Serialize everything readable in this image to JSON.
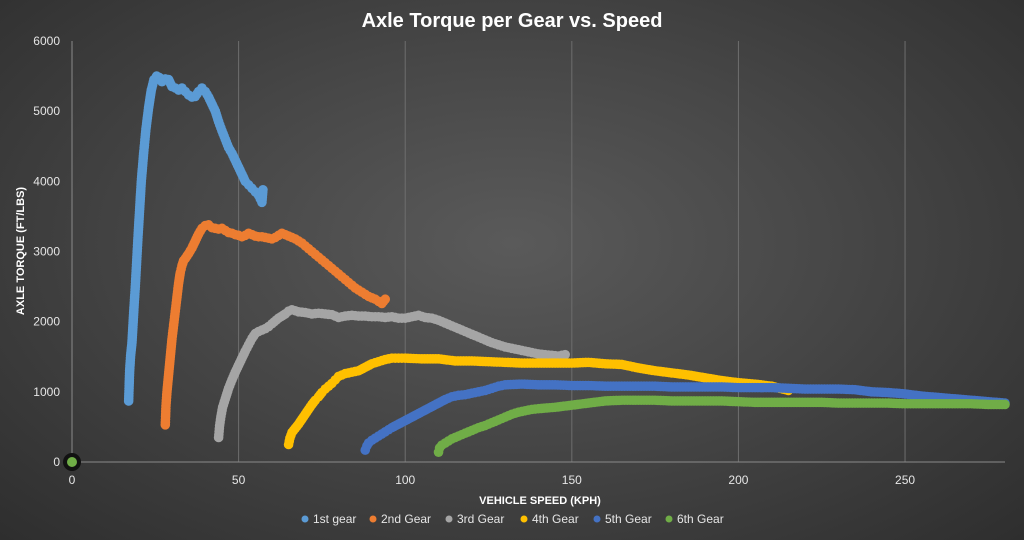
{
  "chart_data": {
    "type": "scatter",
    "title": "Axle Torque per Gear vs. Speed",
    "xlabel": "VEHICLE SPEED (KPH)",
    "ylabel": "AXLE TORQUE (FT/LBS)",
    "xlim": [
      0,
      280
    ],
    "ylim": [
      0,
      6000
    ],
    "x_ticks": [
      0,
      50,
      100,
      150,
      200,
      250
    ],
    "y_ticks": [
      0,
      1000,
      2000,
      3000,
      4000,
      5000,
      6000
    ],
    "grid": "vertical",
    "legend_position": "bottom",
    "series": [
      {
        "name": "1st gear",
        "color": "#5b9bd5",
        "x": [
          17,
          17.3,
          17.6,
          18,
          18.3,
          18.6,
          19,
          19.4,
          19.8,
          20.3,
          20.8,
          21.5,
          22.2,
          23,
          23.8,
          24.6,
          25.4,
          26.2,
          27,
          28,
          29,
          30,
          31,
          32,
          33,
          34,
          35,
          36,
          37,
          38,
          39,
          40,
          41,
          42,
          43,
          44,
          45,
          46,
          47,
          48,
          49,
          50,
          51,
          52,
          53,
          54,
          55,
          56,
          56.5,
          57,
          57.3
        ],
        "y": [
          870,
          1300,
          1520,
          1700,
          1950,
          2200,
          2500,
          2850,
          3200,
          3600,
          4000,
          4400,
          4750,
          5050,
          5300,
          5450,
          5500,
          5480,
          5420,
          5460,
          5450,
          5350,
          5330,
          5300,
          5330,
          5280,
          5230,
          5200,
          5210,
          5280,
          5330,
          5280,
          5200,
          5100,
          5000,
          4850,
          4720,
          4600,
          4480,
          4400,
          4300,
          4200,
          4100,
          4000,
          3950,
          3900,
          3850,
          3800,
          3750,
          3700,
          3880
        ]
      },
      {
        "name": "2nd Gear",
        "color": "#ed7d31",
        "x": [
          28,
          28.2,
          28.5,
          29,
          29.5,
          30,
          30.5,
          31,
          31.5,
          32,
          32.5,
          33,
          33.5,
          34,
          35,
          36,
          37,
          38,
          39,
          40,
          41,
          42,
          43,
          44,
          45,
          46,
          47,
          48,
          49,
          50,
          51,
          52,
          53,
          54,
          55,
          56,
          57,
          58,
          59,
          60,
          61,
          62,
          63,
          64,
          65,
          66,
          67,
          68,
          69,
          70,
          71,
          72,
          73,
          74,
          75,
          76,
          77,
          78,
          79,
          80,
          81,
          82,
          83,
          84,
          85,
          86,
          87,
          88,
          89,
          90,
          91,
          92,
          93,
          94
        ],
        "y": [
          530,
          800,
          1000,
          1250,
          1500,
          1750,
          1950,
          2150,
          2350,
          2550,
          2700,
          2800,
          2870,
          2900,
          2970,
          3050,
          3150,
          3250,
          3330,
          3370,
          3380,
          3340,
          3330,
          3320,
          3330,
          3300,
          3270,
          3260,
          3240,
          3230,
          3210,
          3230,
          3260,
          3240,
          3220,
          3210,
          3210,
          3200,
          3190,
          3180,
          3200,
          3230,
          3260,
          3240,
          3220,
          3200,
          3180,
          3150,
          3120,
          3080,
          3040,
          3000,
          2960,
          2920,
          2880,
          2840,
          2800,
          2760,
          2720,
          2680,
          2640,
          2600,
          2560,
          2520,
          2480,
          2450,
          2420,
          2390,
          2360,
          2340,
          2320,
          2290,
          2260,
          2320
        ]
      },
      {
        "name": "3rd Gear",
        "color": "#a5a5a5",
        "x": [
          44,
          44.3,
          44.7,
          45.2,
          46,
          47,
          48,
          49,
          50,
          51,
          52,
          53,
          54,
          55,
          56,
          57,
          58,
          59,
          60,
          62,
          64,
          65,
          66,
          68,
          70,
          72,
          74,
          76,
          78,
          80,
          82,
          84,
          86,
          88,
          90,
          92,
          94,
          96,
          98,
          100,
          102,
          104,
          106,
          108,
          110,
          112,
          114,
          116,
          118,
          120,
          122,
          124,
          126,
          128,
          130,
          132,
          134,
          136,
          138,
          140,
          142,
          144,
          146,
          148
        ],
        "y": [
          350,
          520,
          650,
          780,
          900,
          1050,
          1170,
          1280,
          1380,
          1480,
          1580,
          1670,
          1760,
          1830,
          1860,
          1880,
          1900,
          1930,
          1970,
          2050,
          2110,
          2150,
          2170,
          2140,
          2130,
          2110,
          2120,
          2110,
          2100,
          2060,
          2080,
          2090,
          2080,
          2080,
          2070,
          2070,
          2060,
          2070,
          2050,
          2050,
          2070,
          2090,
          2060,
          2050,
          2020,
          1980,
          1940,
          1900,
          1860,
          1820,
          1780,
          1740,
          1700,
          1670,
          1640,
          1620,
          1600,
          1580,
          1560,
          1540,
          1530,
          1520,
          1510,
          1530
        ]
      },
      {
        "name": "4th Gear",
        "color": "#ffc000",
        "x": [
          65,
          65.4,
          66,
          67,
          68,
          69,
          70,
          71,
          72,
          73,
          74,
          75,
          76,
          77,
          78,
          79,
          80,
          82,
          84,
          86,
          88,
          90,
          92,
          94,
          96,
          98,
          100,
          105,
          110,
          115,
          120,
          125,
          130,
          135,
          140,
          145,
          150,
          155,
          160,
          165,
          170,
          175,
          180,
          185,
          190,
          195,
          200,
          205,
          210,
          215
        ],
        "y": [
          250,
          340,
          420,
          480,
          540,
          610,
          680,
          750,
          820,
          880,
          930,
          990,
          1040,
          1080,
          1120,
          1170,
          1220,
          1260,
          1280,
          1300,
          1350,
          1400,
          1430,
          1460,
          1480,
          1480,
          1480,
          1470,
          1470,
          1440,
          1440,
          1430,
          1420,
          1410,
          1410,
          1410,
          1410,
          1420,
          1400,
          1390,
          1340,
          1300,
          1270,
          1240,
          1200,
          1160,
          1130,
          1110,
          1080,
          1020
        ]
      },
      {
        "name": "5th Gear",
        "color": "#4472c4",
        "x": [
          88,
          88.5,
          89,
          90,
          91,
          92,
          93,
          94,
          95,
          96,
          98,
          100,
          102,
          104,
          106,
          108,
          110,
          112,
          114,
          116,
          118,
          120,
          122,
          124,
          126,
          128,
          130,
          135,
          140,
          145,
          150,
          155,
          160,
          165,
          170,
          175,
          180,
          185,
          190,
          195,
          200,
          205,
          210,
          215,
          220,
          225,
          230,
          235,
          240,
          245,
          250,
          255,
          260,
          265,
          270,
          275,
          280
        ],
        "y": [
          170,
          230,
          270,
          310,
          340,
          370,
          400,
          430,
          460,
          490,
          540,
          590,
          640,
          690,
          740,
          790,
          840,
          890,
          930,
          950,
          960,
          980,
          1000,
          1020,
          1050,
          1080,
          1100,
          1110,
          1100,
          1100,
          1090,
          1090,
          1080,
          1080,
          1080,
          1080,
          1070,
          1070,
          1070,
          1070,
          1060,
          1060,
          1060,
          1050,
          1040,
          1040,
          1040,
          1030,
          1000,
          990,
          970,
          940,
          920,
          900,
          880,
          860,
          840
        ]
      },
      {
        "name": "6th Gear",
        "color": "#70ad47",
        "x": [
          110,
          110.3,
          111,
          112,
          113,
          114,
          116,
          118,
          120,
          122,
          124,
          126,
          128,
          130,
          132,
          134,
          136,
          138,
          140,
          145,
          150,
          155,
          160,
          165,
          170,
          175,
          180,
          185,
          190,
          195,
          200,
          205,
          210,
          215,
          220,
          225,
          230,
          235,
          240,
          245,
          250,
          255,
          260,
          265,
          270,
          275,
          280
        ],
        "y": [
          140,
          200,
          240,
          270,
          300,
          330,
          370,
          410,
          450,
          490,
          520,
          560,
          600,
          640,
          680,
          710,
          730,
          750,
          760,
          780,
          810,
          840,
          870,
          880,
          880,
          880,
          870,
          870,
          870,
          870,
          860,
          850,
          850,
          850,
          850,
          850,
          840,
          840,
          840,
          840,
          830,
          830,
          830,
          830,
          830,
          820,
          820
        ]
      }
    ]
  }
}
